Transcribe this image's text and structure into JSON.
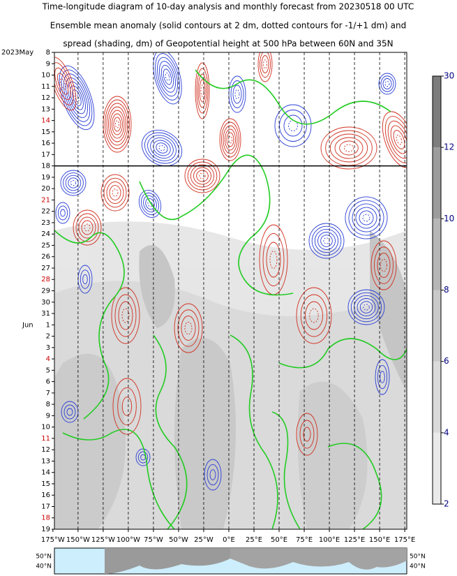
{
  "chart_data": {
    "type": "hovmoller",
    "title_lines": [
      "Time-longitude diagram of 10-day analysis and monthly forecast from 20230518 00 UTC",
      "Ensemble mean anomaly (solid contours at 2 dm, dotted contours for -1/+1 dm) and",
      "spread (shading, dm) of Geopotential height at 500 hPa between 60N and 35N"
    ],
    "year_month_label": "2023May",
    "second_month_label": "Jun",
    "categories": [
      "8",
      "9",
      "10",
      "11",
      "12",
      "13",
      "14",
      "15",
      "16",
      "17",
      "18",
      "19",
      "20",
      "21",
      "22",
      "23",
      "24",
      "25",
      "26",
      "27",
      "28",
      "29",
      "30",
      "31",
      "1",
      "2",
      "3",
      "4",
      "5",
      "6",
      "7",
      "8",
      "9",
      "10",
      "11",
      "12",
      "13",
      "14",
      "15",
      "16",
      "17",
      "18",
      "19"
    ],
    "category_colors": [
      "#000",
      "#000",
      "#000",
      "#000",
      "#000",
      "#000",
      "#cc0000",
      "#000",
      "#000",
      "#000",
      "#000",
      "#000",
      "#000",
      "#cc0000",
      "#000",
      "#000",
      "#000",
      "#000",
      "#000",
      "#000",
      "#cc0000",
      "#000",
      "#000",
      "#000",
      "#000",
      "#000",
      "#000",
      "#cc0000",
      "#000",
      "#000",
      "#000",
      "#000",
      "#000",
      "#000",
      "#cc0000",
      "#000",
      "#000",
      "#000",
      "#000",
      "#000",
      "#000",
      "#cc0000",
      "#000"
    ],
    "xlim": [
      -173.5,
      177
    ],
    "xticks": [
      {
        "value": -175,
        "label": "175°W"
      },
      {
        "value": -150,
        "label": "150°W"
      },
      {
        "value": -125,
        "label": "125°W"
      },
      {
        "value": -100,
        "label": "100°W"
      },
      {
        "value": -75,
        "label": "75°W"
      },
      {
        "value": -50,
        "label": "50°W"
      },
      {
        "value": -25,
        "label": "25°W"
      },
      {
        "value": 0,
        "label": "0°E"
      },
      {
        "value": 25,
        "label": "25°E"
      },
      {
        "value": 50,
        "label": "50°E"
      },
      {
        "value": 75,
        "label": "75°E"
      },
      {
        "value": 100,
        "label": "100°E"
      },
      {
        "value": 125,
        "label": "125°E"
      },
      {
        "value": 150,
        "label": "150°E"
      },
      {
        "value": 175,
        "label": "175°E"
      }
    ],
    "colorbar": {
      "levels": [
        2,
        4,
        6,
        8,
        10,
        12,
        30
      ],
      "colors": [
        "#eaeaea",
        "#dadada",
        "#c9c9c9",
        "#b6b6b6",
        "#9c9c9c",
        "#7d7d7d"
      ]
    },
    "map_labels": [
      "50°N",
      "40°N"
    ]
  }
}
